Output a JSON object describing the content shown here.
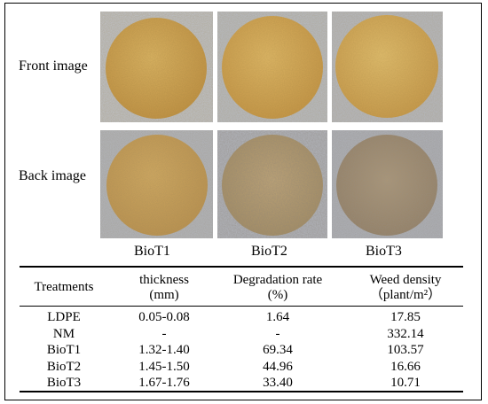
{
  "images": {
    "row_labels": [
      "Front image",
      "Back image"
    ],
    "column_labels": [
      "BioT1",
      "BioT2",
      "BioT3"
    ]
  },
  "table": {
    "headers": [
      {
        "line1": "Treatments",
        "line2": ""
      },
      {
        "line1": "thickness",
        "line2": "(mm)"
      },
      {
        "line1": "Degradation rate",
        "line2": "(%)"
      },
      {
        "line1": "Weed density",
        "line2": "（plant/m²）"
      }
    ],
    "rows": [
      [
        "LDPE",
        "0.05-0.08",
        "1.64",
        "17.85"
      ],
      [
        "NM",
        "-",
        "-",
        "332.14"
      ],
      [
        "BioT1",
        "1.32-1.40",
        "69.34",
        "103.57"
      ],
      [
        "BioT2",
        "1.45-1.50",
        "44.96",
        "16.66"
      ],
      [
        "BioT3",
        "1.67-1.76",
        "33.40",
        "10.71"
      ]
    ]
  },
  "colors": {
    "cloth_background": "#b9bcc3",
    "disc_front": "#d2a653",
    "disc_back_t1": "#c9a058",
    "disc_back_t2": "#b39a6a",
    "disc_back_t3": "#a08a6c"
  }
}
